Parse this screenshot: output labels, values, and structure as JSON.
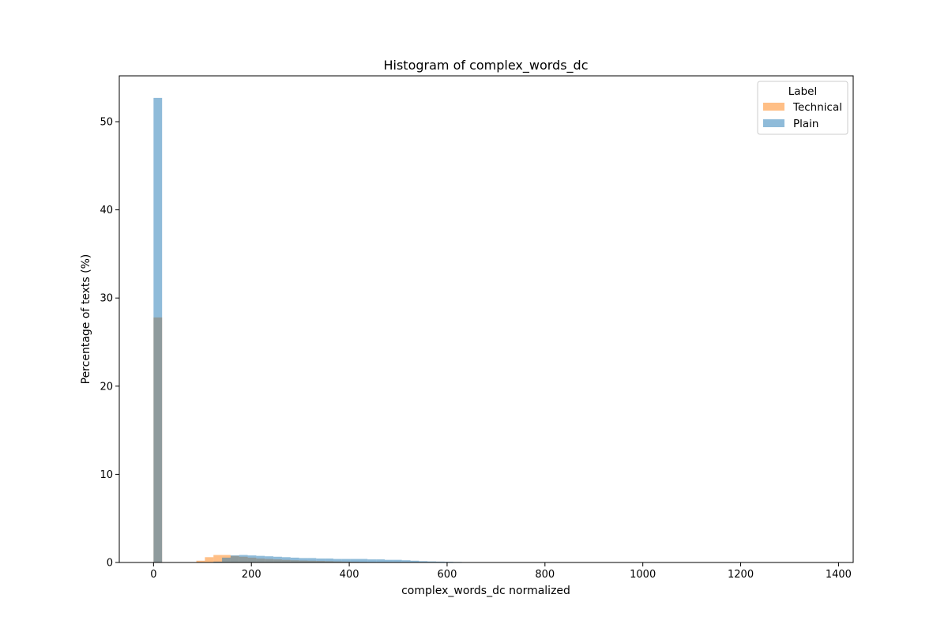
{
  "chart_data": {
    "type": "bar",
    "title": "Histogram of complex_words_dc",
    "xlabel": "complex_words_dc normalized",
    "ylabel": "Percentage of texts (%)",
    "xlim": [
      -70,
      1430
    ],
    "ylim": [
      0,
      55.2
    ],
    "xticks": [
      0,
      200,
      400,
      600,
      800,
      1000,
      1200,
      1400
    ],
    "yticks": [
      0,
      10,
      20,
      30,
      40,
      50
    ],
    "grid": false,
    "legend": {
      "title": "Label",
      "placement": "top-right"
    },
    "bin_width": 17.5,
    "series": [
      {
        "name": "Technical",
        "color": "#ff7f0e",
        "opacity": 0.5,
        "bins": [
          {
            "x": 0,
            "y": 27.8
          },
          {
            "x": 87.5,
            "y": 0.2
          },
          {
            "x": 105,
            "y": 0.6
          },
          {
            "x": 122.5,
            "y": 0.85
          },
          {
            "x": 140,
            "y": 0.85
          },
          {
            "x": 157.5,
            "y": 0.75
          },
          {
            "x": 175,
            "y": 0.65
          },
          {
            "x": 192.5,
            "y": 0.55
          },
          {
            "x": 210,
            "y": 0.45
          },
          {
            "x": 227.5,
            "y": 0.4
          },
          {
            "x": 245,
            "y": 0.35
          },
          {
            "x": 262.5,
            "y": 0.3
          },
          {
            "x": 280,
            "y": 0.25
          },
          {
            "x": 297.5,
            "y": 0.22
          },
          {
            "x": 315,
            "y": 0.2
          },
          {
            "x": 332.5,
            "y": 0.18
          },
          {
            "x": 350,
            "y": 0.15
          },
          {
            "x": 367.5,
            "y": 0.12
          },
          {
            "x": 385,
            "y": 0.1
          },
          {
            "x": 402.5,
            "y": 0.08
          },
          {
            "x": 420,
            "y": 0.06
          }
        ]
      },
      {
        "name": "Plain",
        "color": "#1f77b4",
        "opacity": 0.5,
        "bins": [
          {
            "x": 0,
            "y": 52.7
          },
          {
            "x": 122.5,
            "y": 0.1
          },
          {
            "x": 140,
            "y": 0.55
          },
          {
            "x": 157.5,
            "y": 0.8
          },
          {
            "x": 175,
            "y": 0.85
          },
          {
            "x": 192.5,
            "y": 0.8
          },
          {
            "x": 210,
            "y": 0.75
          },
          {
            "x": 227.5,
            "y": 0.7
          },
          {
            "x": 245,
            "y": 0.65
          },
          {
            "x": 262.5,
            "y": 0.6
          },
          {
            "x": 280,
            "y": 0.55
          },
          {
            "x": 297.5,
            "y": 0.5
          },
          {
            "x": 315,
            "y": 0.5
          },
          {
            "x": 332.5,
            "y": 0.45
          },
          {
            "x": 350,
            "y": 0.45
          },
          {
            "x": 367.5,
            "y": 0.4
          },
          {
            "x": 385,
            "y": 0.4
          },
          {
            "x": 402.5,
            "y": 0.4
          },
          {
            "x": 420,
            "y": 0.4
          },
          {
            "x": 437.5,
            "y": 0.35
          },
          {
            "x": 455,
            "y": 0.35
          },
          {
            "x": 472.5,
            "y": 0.3
          },
          {
            "x": 490,
            "y": 0.3
          },
          {
            "x": 507.5,
            "y": 0.25
          },
          {
            "x": 525,
            "y": 0.2
          },
          {
            "x": 542.5,
            "y": 0.15
          },
          {
            "x": 560,
            "y": 0.12
          },
          {
            "x": 577.5,
            "y": 0.1
          },
          {
            "x": 595,
            "y": 0.08
          },
          {
            "x": 612.5,
            "y": 0.06
          },
          {
            "x": 630,
            "y": 0.04
          }
        ]
      }
    ]
  }
}
